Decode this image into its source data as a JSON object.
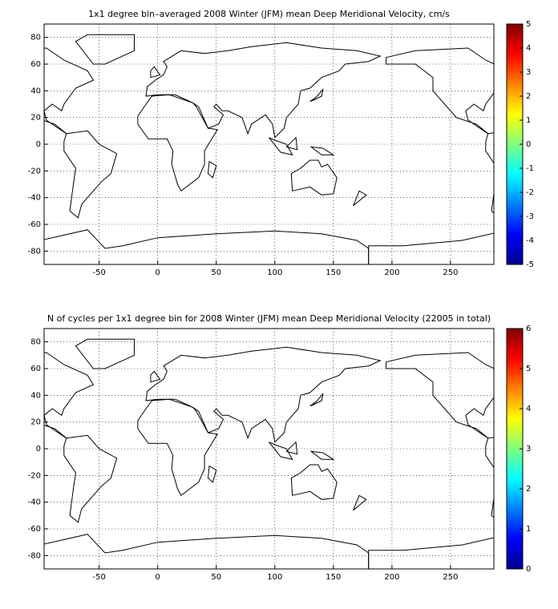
{
  "chart_data": [
    {
      "type": "map",
      "title": "1x1 degree bin–averaged 2008 Winter (JFM) mean Deep Meridional Velocity, cm/s",
      "xlim": [
        -97,
        287
      ],
      "ylim": [
        -90,
        90
      ],
      "xticks": [
        -50,
        0,
        50,
        100,
        150,
        200,
        250
      ],
      "yticks": [
        -80,
        -60,
        -40,
        -20,
        0,
        20,
        40,
        60,
        80
      ],
      "grid": true,
      "colorbar": {
        "lim": [
          -5,
          5
        ],
        "ticks": [
          -5,
          -4,
          -3,
          -2,
          -1,
          0,
          1,
          2,
          3,
          4,
          5
        ],
        "colormap": "jet"
      }
    },
    {
      "type": "map",
      "title": "N of cycles per 1x1 degree bin for 2008 Winter (JFM) mean Deep Meridional Velocity (22005 in total)",
      "xlim": [
        -97,
        287
      ],
      "ylim": [
        -90,
        90
      ],
      "xticks": [
        -50,
        0,
        50,
        100,
        150,
        200,
        250
      ],
      "yticks": [
        -80,
        -60,
        -40,
        -20,
        0,
        20,
        40,
        60,
        80
      ],
      "grid": true,
      "colorbar": {
        "lim": [
          0,
          6
        ],
        "ticks": [
          0,
          1,
          2,
          3,
          4,
          5,
          6
        ],
        "colormap": "jet"
      }
    }
  ]
}
